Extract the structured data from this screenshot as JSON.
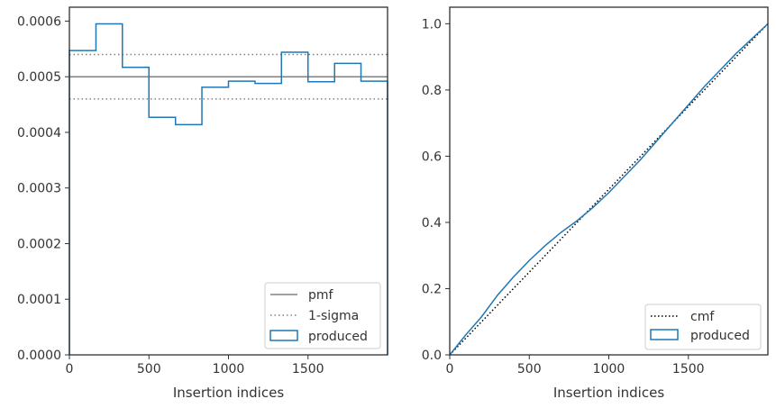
{
  "chart_data": [
    {
      "type": "line",
      "xlabel": "Insertion indices",
      "ylabel": "",
      "xlim": [
        0,
        2000
      ],
      "ylim": [
        0,
        0.000625
      ],
      "x_ticks": [
        0,
        500,
        1000,
        1500
      ],
      "x_tick_labels": [
        "0",
        "500",
        "1000",
        "1500"
      ],
      "y_ticks": [
        0,
        0.0001,
        0.0002,
        0.0003,
        0.0004,
        0.0005,
        0.0006
      ],
      "y_tick_labels": [
        "0.0000",
        "0.0001",
        "0.0002",
        "0.0003",
        "0.0004",
        "0.0005",
        "0.0006"
      ],
      "grid": false,
      "legend_placement": "lower-right",
      "pmf": {
        "name": "pmf",
        "value": 0.0005,
        "color": "#808080"
      },
      "sigma": {
        "name": "1-sigma",
        "upper": 0.00054,
        "lower": 0.00046,
        "color": "#808080"
      },
      "histogram": {
        "name": "produced",
        "color": "#1f77b4",
        "bin_edges": [
          0,
          167,
          333,
          500,
          667,
          833,
          1000,
          1167,
          1333,
          1500,
          1667,
          1833,
          2000
        ],
        "values": [
          0.000547,
          0.000595,
          0.000517,
          0.000427,
          0.000414,
          0.000481,
          0.000492,
          0.000488,
          0.000544,
          0.000491,
          0.000524,
          0.000492
        ]
      }
    },
    {
      "type": "line",
      "xlabel": "Insertion indices",
      "ylabel": "",
      "xlim": [
        0,
        2000
      ],
      "ylim": [
        0,
        1.05
      ],
      "x_ticks": [
        0,
        500,
        1000,
        1500
      ],
      "x_tick_labels": [
        "0",
        "500",
        "1000",
        "1500"
      ],
      "y_ticks": [
        0,
        0.2,
        0.4,
        0.6,
        0.8,
        1.0
      ],
      "y_tick_labels": [
        "0.0",
        "0.2",
        "0.4",
        "0.6",
        "0.8",
        "1.0"
      ],
      "grid": false,
      "legend_placement": "lower-right",
      "series": [
        {
          "name": "cmf",
          "style": "dotted",
          "color": "#000000",
          "x": [
            0,
            2000
          ],
          "y": [
            0,
            1.0
          ]
        },
        {
          "name": "produced",
          "style": "solid",
          "color": "#1f77b4",
          "x": [
            0,
            50,
            100,
            200,
            300,
            400,
            500,
            600,
            700,
            800,
            900,
            1000,
            1100,
            1200,
            1300,
            1400,
            1500,
            1600,
            1700,
            1800,
            1900,
            2000
          ],
          "y": [
            0,
            0.03,
            0.06,
            0.115,
            0.18,
            0.235,
            0.285,
            0.33,
            0.37,
            0.405,
            0.445,
            0.49,
            0.54,
            0.59,
            0.645,
            0.7,
            0.755,
            0.81,
            0.86,
            0.91,
            0.955,
            1.0
          ]
        }
      ]
    }
  ]
}
